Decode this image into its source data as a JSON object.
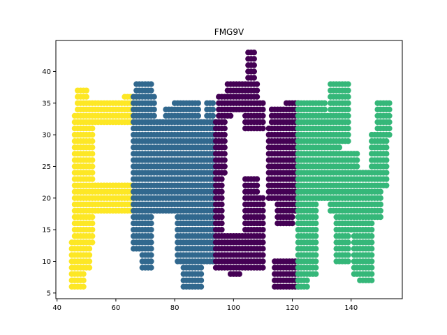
{
  "chart_data": {
    "type": "scatter",
    "title": "FMG9V",
    "xlabel": "",
    "ylabel": "",
    "xlim": [
      39.6,
      157.4
    ],
    "ylim": [
      4.1,
      44.9
    ],
    "xticks": [
      40,
      60,
      80,
      100,
      120,
      140
    ],
    "yticks": [
      5,
      10,
      15,
      20,
      25,
      30,
      35,
      40
    ],
    "grid": false,
    "legend": "none",
    "series": [
      {
        "letter": "F",
        "color": "#fde725",
        "rects": [
          [
            44.5,
            49.5,
            6,
            13.5
          ],
          [
            45,
            51,
            9,
            12
          ],
          [
            47,
            50,
            13,
            37
          ],
          [
            46,
            52,
            13,
            33
          ],
          [
            47,
            66,
            31.5,
            35.5
          ],
          [
            50,
            66,
            32,
            34
          ],
          [
            63,
            67,
            34,
            36
          ],
          [
            47,
            66,
            17.5,
            22.5
          ],
          [
            50,
            64,
            18,
            21
          ]
        ]
      },
      {
        "letter": "M",
        "color": "#31688e",
        "rects": [
          [
            66,
            73,
            22,
            36
          ],
          [
            67,
            72,
            30,
            38
          ],
          [
            69,
            72,
            9,
            22
          ],
          [
            66,
            71,
            12,
            22
          ],
          [
            72,
            80,
            22,
            32
          ],
          [
            73,
            79,
            18,
            23
          ],
          [
            77,
            82,
            20,
            34
          ],
          [
            80,
            88,
            18,
            35
          ],
          [
            81,
            89,
            10,
            30
          ],
          [
            83,
            89,
            6,
            12
          ],
          [
            86,
            93,
            10,
            30
          ],
          [
            88,
            94,
            20,
            32
          ],
          [
            91,
            93,
            28,
            35
          ]
        ]
      },
      {
        "letter": "G",
        "color": "#440154",
        "rects": [
          [
            95,
            110,
            9,
            13
          ],
          [
            94,
            106,
            11,
            14
          ],
          [
            99,
            102,
            8,
            10
          ],
          [
            94,
            96,
            9,
            32
          ],
          [
            95,
            97,
            24,
            34
          ],
          [
            95,
            99,
            33,
            36
          ],
          [
            98,
            108,
            34,
            38
          ],
          [
            105,
            107,
            36,
            43
          ],
          [
            104,
            110,
            31,
            35
          ],
          [
            104,
            108,
            12,
            23
          ],
          [
            106,
            110,
            10,
            20
          ],
          [
            112,
            118,
            20,
            31
          ],
          [
            113,
            116,
            31,
            34
          ],
          [
            116,
            120,
            27,
            34
          ],
          [
            118,
            122,
            18,
            35
          ],
          [
            115,
            120,
            16,
            24
          ],
          [
            114,
            122,
            6,
            10
          ],
          [
            117,
            121,
            7,
            9
          ]
        ]
      },
      {
        "letter": "9",
        "color": "#35b779",
        "rects": [
          [
            122,
            131,
            22,
            35
          ],
          [
            122,
            126,
            12,
            25
          ],
          [
            123,
            128,
            8,
            24
          ],
          [
            122,
            125,
            6,
            12
          ],
          [
            127,
            136,
            25,
            33
          ],
          [
            129,
            132,
            20,
            27
          ],
          [
            133,
            139,
            29,
            38
          ],
          [
            133,
            142,
            18,
            27
          ],
          [
            135,
            139,
            10,
            21
          ],
          [
            138,
            145,
            15,
            24
          ],
          [
            141,
            146,
            8,
            18
          ],
          [
            143,
            147,
            7,
            16
          ],
          [
            145,
            150,
            17,
            24
          ],
          [
            147,
            152,
            22,
            30
          ],
          [
            149,
            153,
            30,
            35
          ]
        ]
      }
    ]
  }
}
